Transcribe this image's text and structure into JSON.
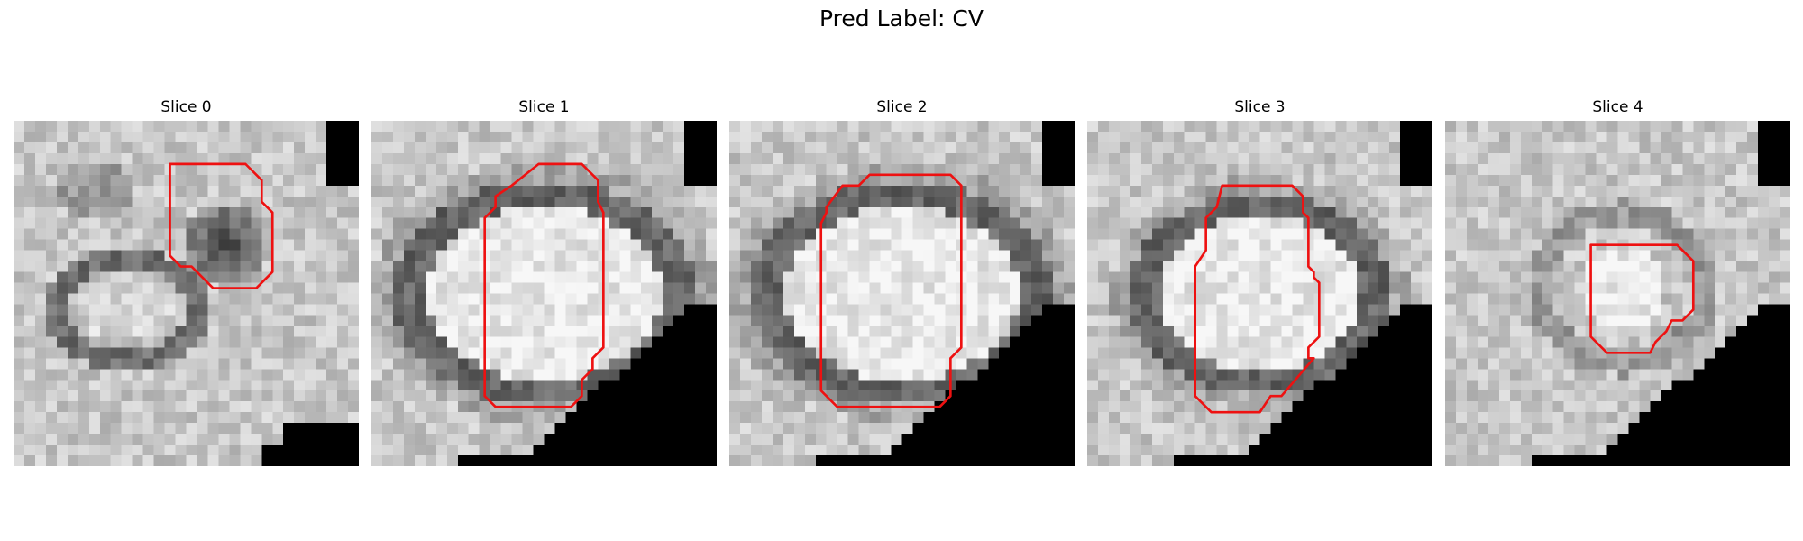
{
  "figure": {
    "title": "Pred Label: CV"
  },
  "panels": [
    {
      "title": "Slice 0",
      "seed": 11,
      "mode": "slice0",
      "contour_color": "#ee1111"
    },
    {
      "title": "Slice 1",
      "seed": 23,
      "mode": "ring",
      "contour_color": "#ee1111"
    },
    {
      "title": "Slice 2",
      "seed": 37,
      "mode": "ring",
      "contour_color": "#ee1111"
    },
    {
      "title": "Slice 3",
      "seed": 41,
      "mode": "ring3",
      "contour_color": "#ee1111"
    },
    {
      "title": "Slice 4",
      "seed": 53,
      "mode": "blob",
      "contour_color": "#ee1111"
    }
  ]
}
